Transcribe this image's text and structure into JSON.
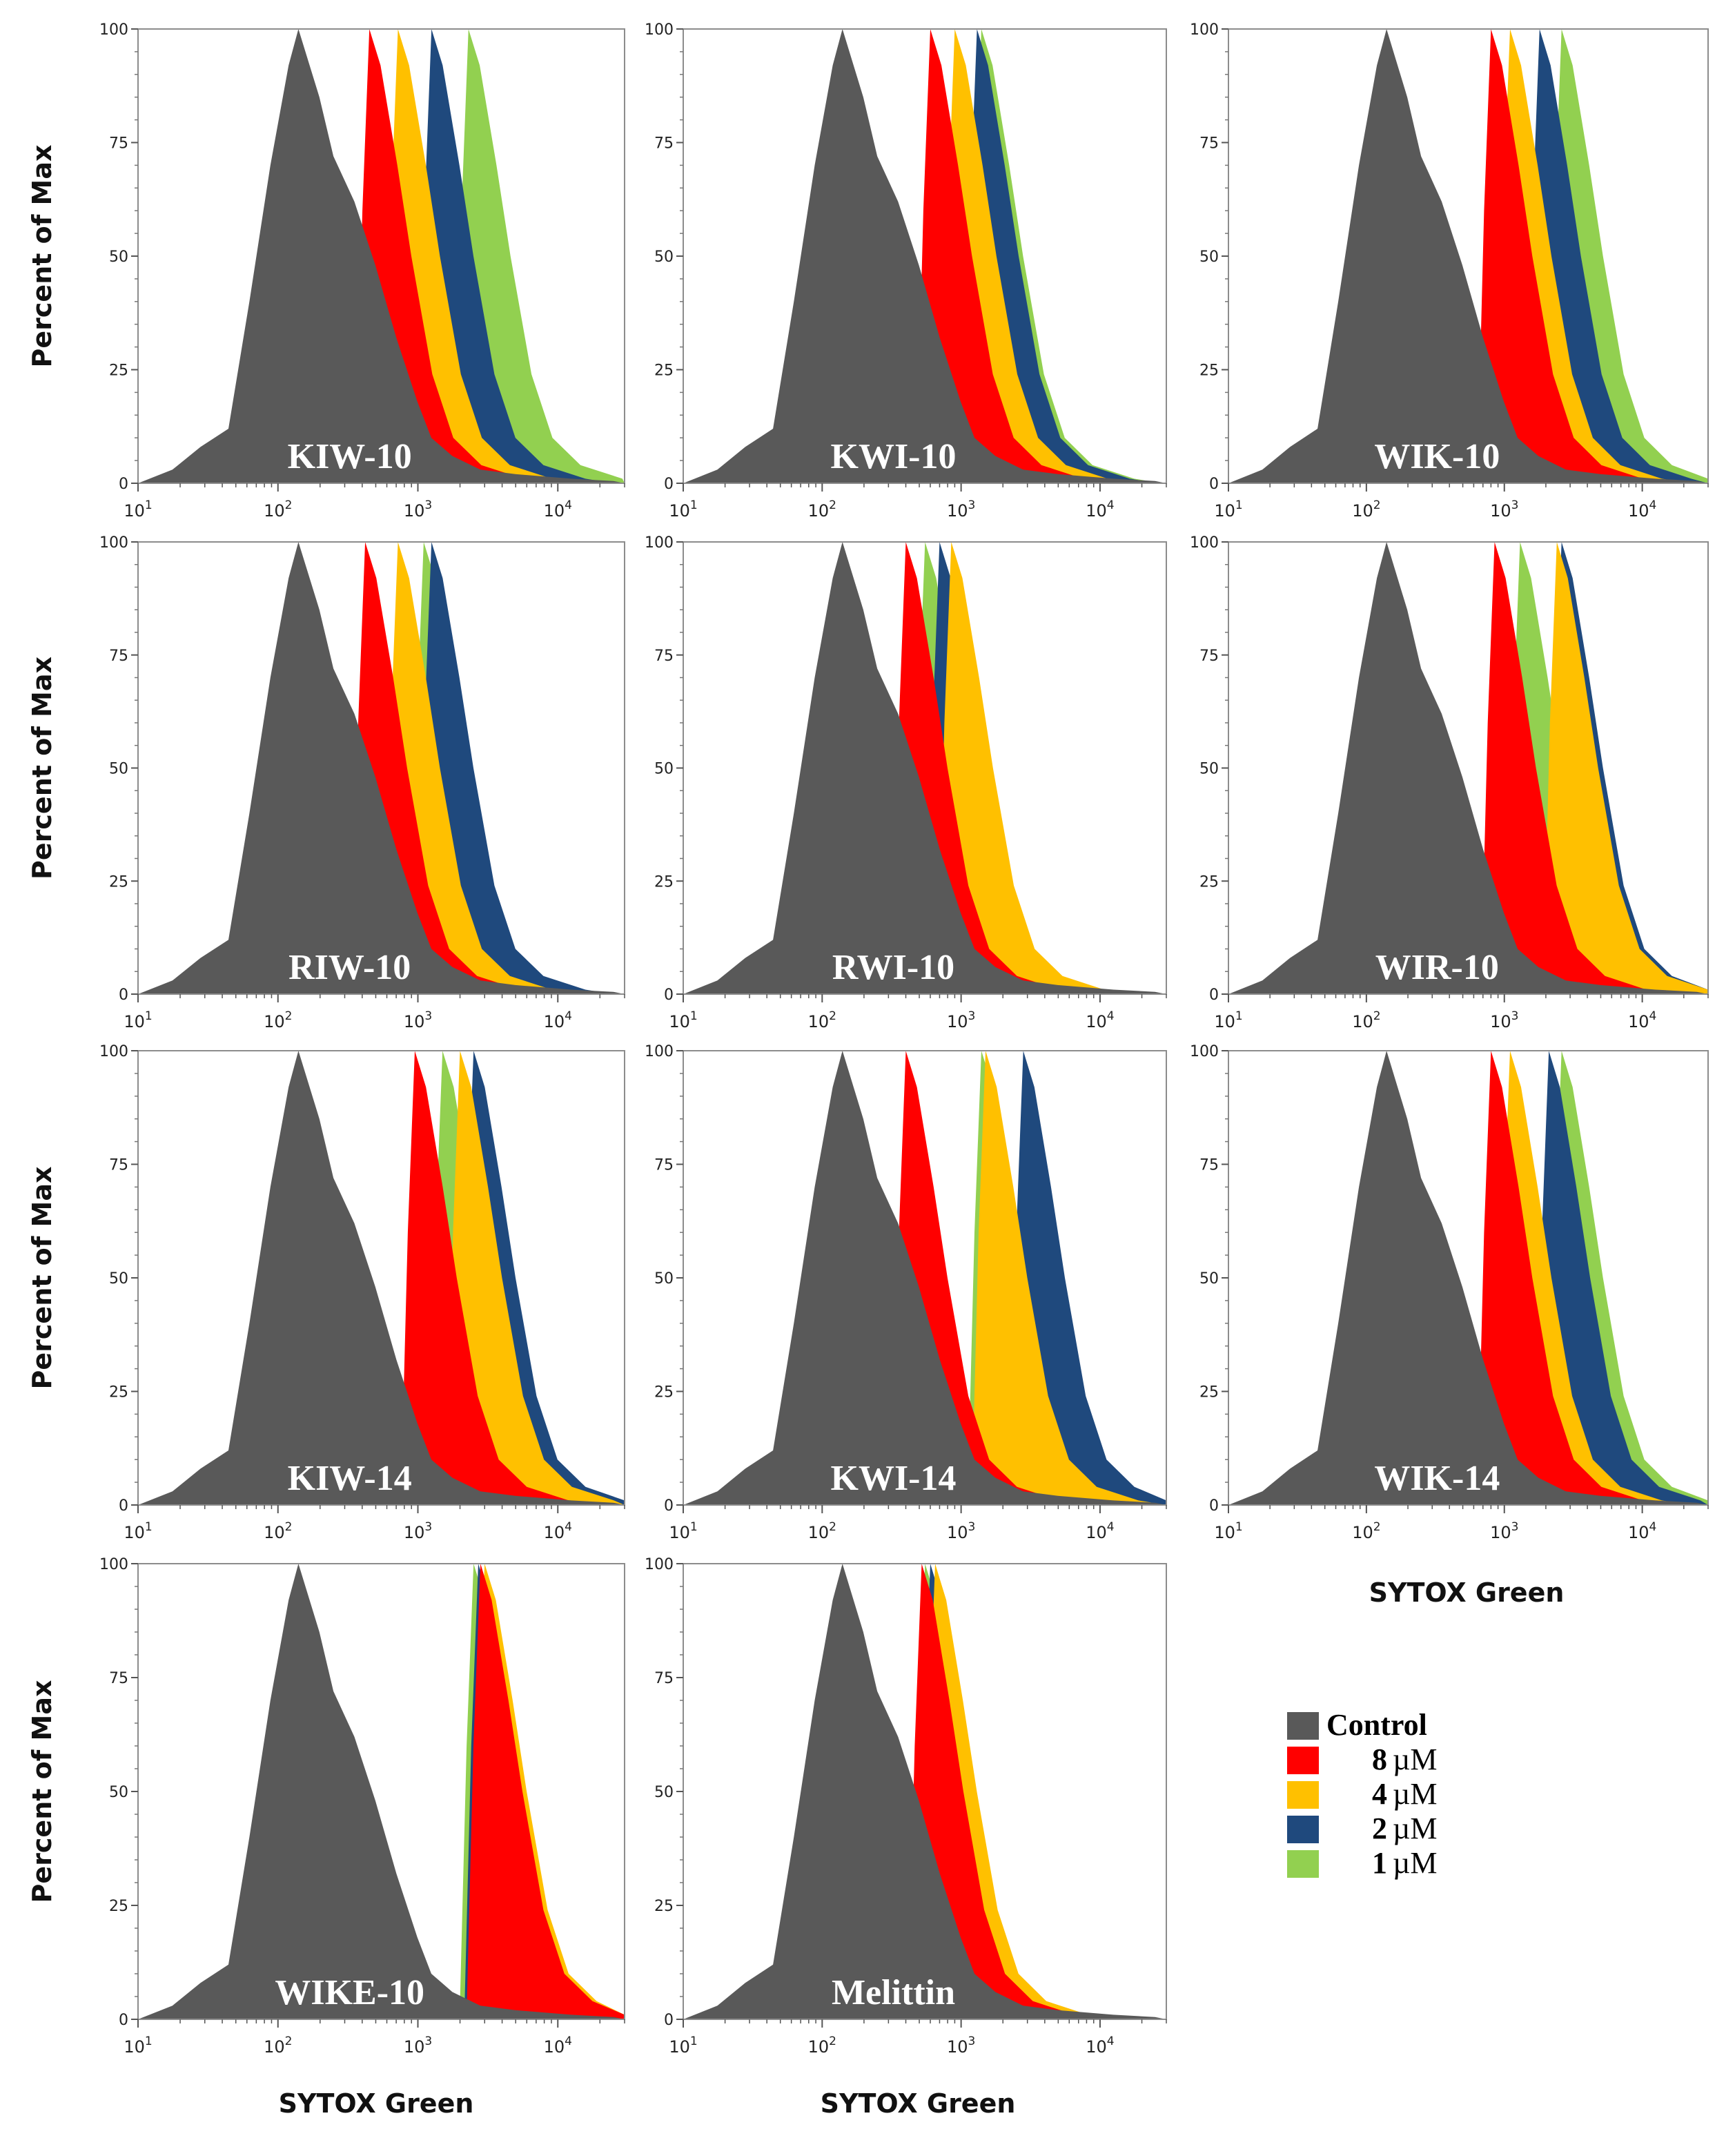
{
  "figure": {
    "ylabel": "Percent of Max",
    "xlabel": "SYTOX Green",
    "y_ticks": [
      "0",
      "25",
      "50",
      "75",
      "100"
    ],
    "x_ticks": [
      {
        "base": "10",
        "exp": "1"
      },
      {
        "base": "10",
        "exp": "2"
      },
      {
        "base": "10",
        "exp": "3"
      },
      {
        "base": "10",
        "exp": "4"
      }
    ]
  },
  "colors": {
    "Control": "#595959",
    "8 µM": "#ff0000",
    "4 µM": "#ffc000",
    "2 µM": "#1f497d",
    "1 µM": "#92d050"
  },
  "legend": {
    "placement": "bottom-right",
    "items": [
      {
        "key": "Control",
        "num": "",
        "label": "Control"
      },
      {
        "key": "8 µM",
        "num": "8",
        "label": "µM"
      },
      {
        "key": "4 µM",
        "num": "4",
        "label": "µM"
      },
      {
        "key": "2 µM",
        "num": "2",
        "label": "µM"
      },
      {
        "key": "1 µM",
        "num": "1",
        "label": "µM"
      }
    ]
  },
  "chart_data": [
    {
      "type": "area",
      "title": "KIW-10",
      "xscale": "log",
      "xlim": [
        10,
        30000
      ],
      "ylim": [
        0,
        100
      ],
      "series": [
        {
          "name": "Control",
          "peak": 140
        },
        {
          "name": "8 µM",
          "peak": 450
        },
        {
          "name": "4 µM",
          "peak": 720
        },
        {
          "name": "2 µM",
          "peak": 1250
        },
        {
          "name": "1 µM",
          "peak": 2300
        }
      ]
    },
    {
      "type": "area",
      "title": "KWI-10",
      "xscale": "log",
      "xlim": [
        10,
        30000
      ],
      "ylim": [
        0,
        100
      ],
      "series": [
        {
          "name": "Control",
          "peak": 140
        },
        {
          "name": "8 µM",
          "peak": 600
        },
        {
          "name": "4 µM",
          "peak": 900
        },
        {
          "name": "2 µM",
          "peak": 1300
        },
        {
          "name": "1 µM",
          "peak": 1400
        }
      ]
    },
    {
      "type": "area",
      "title": "WIK-10",
      "xscale": "log",
      "xlim": [
        10,
        30000
      ],
      "ylim": [
        0,
        100
      ],
      "series": [
        {
          "name": "Control",
          "peak": 140
        },
        {
          "name": "8 µM",
          "peak": 800
        },
        {
          "name": "4 µM",
          "peak": 1100
        },
        {
          "name": "2 µM",
          "peak": 1800
        },
        {
          "name": "1 µM",
          "peak": 2600
        }
      ]
    },
    {
      "type": "area",
      "title": "RIW-10",
      "xscale": "log",
      "xlim": [
        10,
        30000
      ],
      "ylim": [
        0,
        100
      ],
      "series": [
        {
          "name": "Control",
          "peak": 140
        },
        {
          "name": "8 µM",
          "peak": 420
        },
        {
          "name": "4 µM",
          "peak": 720
        },
        {
          "name": "2 µM",
          "peak": 1250
        },
        {
          "name": "1 µM",
          "peak": 1100
        }
      ]
    },
    {
      "type": "area",
      "title": "RWI-10",
      "xscale": "log",
      "xlim": [
        10,
        30000
      ],
      "ylim": [
        0,
        100
      ],
      "series": [
        {
          "name": "Control",
          "peak": 140
        },
        {
          "name": "8 µM",
          "peak": 400
        },
        {
          "name": "4 µM",
          "peak": 850
        },
        {
          "name": "2 µM",
          "peak": 700
        },
        {
          "name": "1 µM",
          "peak": 550
        }
      ]
    },
    {
      "type": "area",
      "title": "WIR-10",
      "xscale": "log",
      "xlim": [
        10,
        30000
      ],
      "ylim": [
        0,
        100
      ],
      "series": [
        {
          "name": "Control",
          "peak": 140
        },
        {
          "name": "8 µM",
          "peak": 850
        },
        {
          "name": "4 µM",
          "peak": 2400
        },
        {
          "name": "2 µM",
          "peak": 2600
        },
        {
          "name": "1 µM",
          "peak": 1300
        }
      ]
    },
    {
      "type": "area",
      "title": "KIW-14",
      "xscale": "log",
      "xlim": [
        10,
        30000
      ],
      "ylim": [
        0,
        100
      ],
      "series": [
        {
          "name": "Control",
          "peak": 140
        },
        {
          "name": "8 µM",
          "peak": 950
        },
        {
          "name": "4 µM",
          "peak": 2000
        },
        {
          "name": "2 µM",
          "peak": 2500
        },
        {
          "name": "1 µM",
          "peak": 1500
        }
      ]
    },
    {
      "type": "area",
      "title": "KWI-14",
      "xscale": "log",
      "xlim": [
        10,
        30000
      ],
      "ylim": [
        0,
        100
      ],
      "series": [
        {
          "name": "Control",
          "peak": 140
        },
        {
          "name": "8 µM",
          "peak": 400
        },
        {
          "name": "4 µM",
          "peak": 1500
        },
        {
          "name": "2 µM",
          "peak": 2800
        },
        {
          "name": "1 µM",
          "peak": 1400
        }
      ]
    },
    {
      "type": "area",
      "title": "WIK-14",
      "xscale": "log",
      "xlim": [
        10,
        30000
      ],
      "ylim": [
        0,
        100
      ],
      "series": [
        {
          "name": "Control",
          "peak": 140
        },
        {
          "name": "8 µM",
          "peak": 800
        },
        {
          "name": "4 µM",
          "peak": 1100
        },
        {
          "name": "2 µM",
          "peak": 2100
        },
        {
          "name": "1 µM",
          "peak": 2600
        }
      ]
    },
    {
      "type": "area",
      "title": "WIKE-10",
      "xscale": "log",
      "xlim": [
        10,
        30000
      ],
      "ylim": [
        0,
        100
      ],
      "series": [
        {
          "name": "Control",
          "peak": 140
        },
        {
          "name": "8 µM",
          "peak": 2800
        },
        {
          "name": "4 µM",
          "peak": 3000
        },
        {
          "name": "2 µM",
          "peak": 2700
        },
        {
          "name": "1 µM",
          "peak": 2500
        }
      ]
    },
    {
      "type": "area",
      "title": "Melittin",
      "xscale": "log",
      "xlim": [
        10,
        30000
      ],
      "ylim": [
        0,
        100
      ],
      "series": [
        {
          "name": "Control",
          "peak": 140
        },
        {
          "name": "8 µM",
          "peak": 520
        },
        {
          "name": "4 µM",
          "peak": 650
        },
        {
          "name": "2 µM",
          "peak": 600
        },
        {
          "name": "1 µM",
          "peak": 550
        }
      ]
    }
  ]
}
